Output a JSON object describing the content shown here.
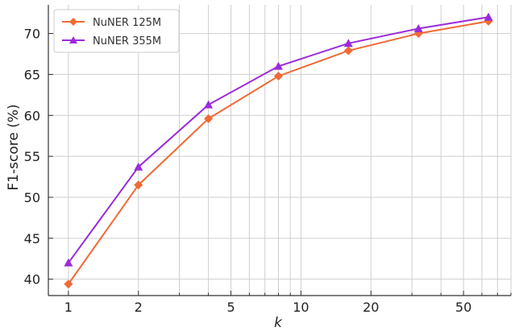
{
  "chart_data": {
    "type": "line",
    "xlabel": "k",
    "ylabel": "F1-score (%)",
    "xscale": "log",
    "x": [
      1,
      2,
      4,
      8,
      16,
      32,
      64
    ],
    "x_ticks": [
      1,
      2,
      5,
      10,
      20,
      50
    ],
    "x_tick_labels": [
      "1",
      "2",
      "5",
      "10",
      "20",
      "50"
    ],
    "xlim": [
      0.82,
      80
    ],
    "ylim": [
      38,
      73.5
    ],
    "y_ticks": [
      40,
      45,
      50,
      55,
      60,
      65,
      70
    ],
    "y_tick_labels": [
      "40",
      "45",
      "50",
      "55",
      "60",
      "65",
      "70"
    ],
    "grid": true,
    "legend_position": "top-left",
    "series": [
      {
        "name": "NuNER 125M",
        "color": "#f06a35",
        "marker": "diamond",
        "values": [
          39.4,
          51.5,
          59.6,
          64.8,
          67.9,
          70.0,
          71.5
        ]
      },
      {
        "name": "NuNER 355M",
        "color": "#9b2bd9",
        "marker": "triangle",
        "values": [
          42.0,
          53.7,
          61.3,
          66.0,
          68.8,
          70.6,
          72.0
        ]
      }
    ]
  }
}
